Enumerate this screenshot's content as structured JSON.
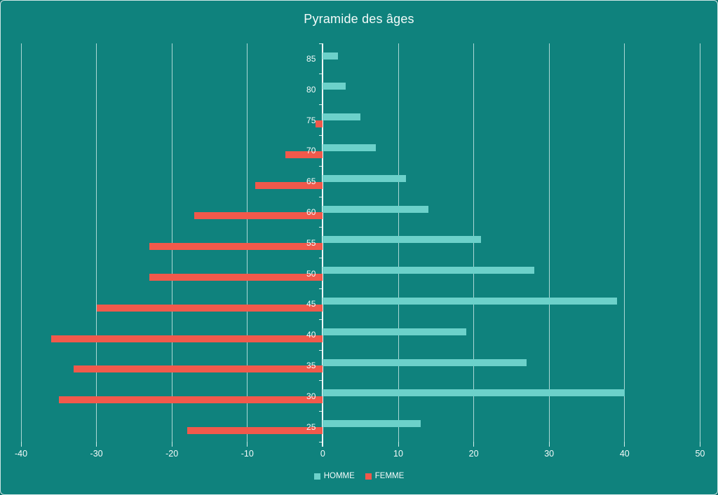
{
  "window": {
    "background_color": "#0F827D",
    "text_color": "#F4FBFA",
    "gridline_color": "#E9F9F7"
  },
  "chart_data": {
    "type": "bar",
    "orientation": "horizontal",
    "title": "Pyramide des âges",
    "categories": [
      "85",
      "80",
      "75",
      "70",
      "65",
      "60",
      "55",
      "50",
      "45",
      "40",
      "35",
      "30",
      "25"
    ],
    "series": [
      {
        "name": "HOMME",
        "color": "#6CD1CA",
        "values": [
          2,
          3,
          5,
          7,
          11,
          14,
          21,
          28,
          39,
          19,
          27,
          40,
          13
        ]
      },
      {
        "name": "FEMME",
        "color": "#F1594B",
        "values": [
          0,
          0,
          -1,
          -5,
          -9,
          -17,
          -23,
          -23,
          -30,
          -36,
          -33,
          -35,
          -18
        ]
      }
    ],
    "x_axis": {
      "min": -40,
      "max": 50,
      "step": 10,
      "tick_labels": [
        "-40",
        "-30",
        "-20",
        "-10",
        "0",
        "10",
        "20",
        "30",
        "40",
        "50"
      ]
    },
    "grid": true,
    "legend_position": "bottom"
  }
}
